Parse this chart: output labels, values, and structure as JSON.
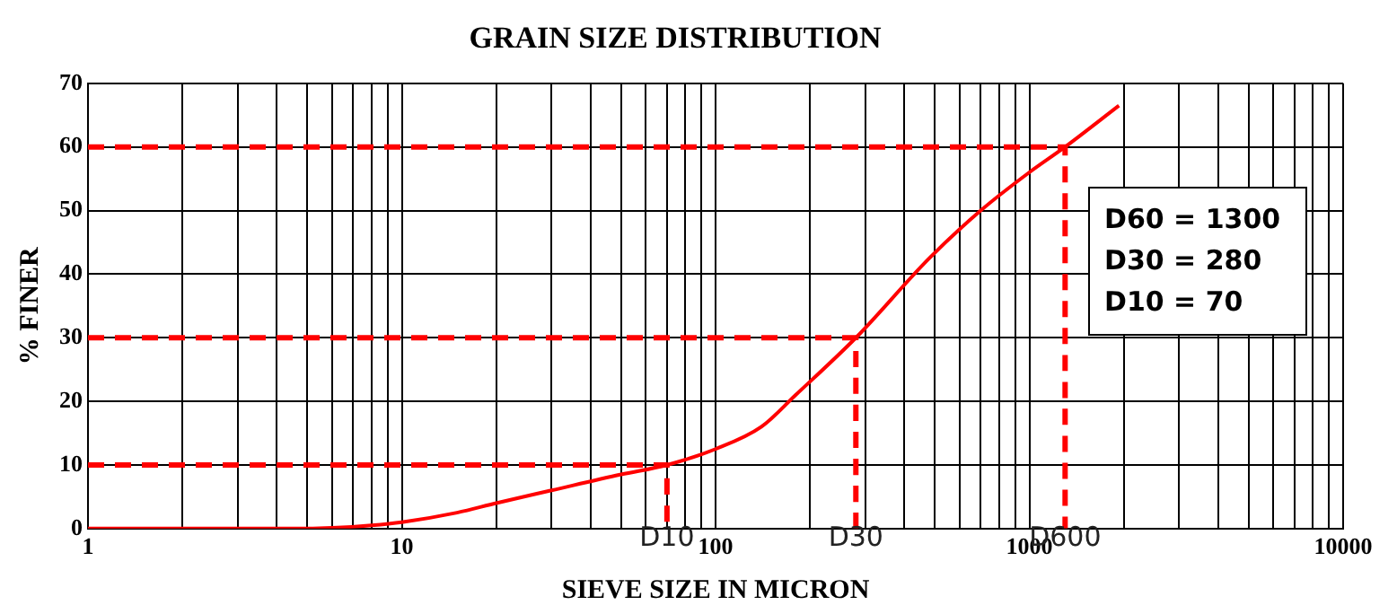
{
  "chart_data": {
    "type": "line",
    "title": "GRAIN SIZE DISTRIBUTION",
    "xlabel": "SIEVE SIZE IN MICRON",
    "ylabel": "% FINER",
    "log": "x",
    "xlim": [
      1,
      10000
    ],
    "ylim": [
      0,
      70
    ],
    "xticks": [
      1,
      {
        "value": 2,
        "label": null
      },
      {
        "value": 3,
        "label": null
      },
      {
        "value": 4,
        "label": null
      },
      {
        "value": 5,
        "label": null
      },
      {
        "value": 6,
        "label": null
      },
      {
        "value": 7,
        "label": null
      },
      {
        "value": 8,
        "label": null
      },
      {
        "value": 9,
        "label": null
      },
      10,
      {
        "value": 20,
        "label": null
      },
      {
        "value": 30,
        "label": null
      },
      {
        "value": 40,
        "label": null
      },
      {
        "value": 50,
        "label": null
      },
      {
        "value": 60,
        "label": null
      },
      {
        "value": 70,
        "label": null
      },
      {
        "value": 80,
        "label": null
      },
      {
        "value": 90,
        "label": null
      },
      100,
      {
        "value": 200,
        "label": null
      },
      {
        "value": 300,
        "label": null
      },
      {
        "value": 400,
        "label": null
      },
      {
        "value": 500,
        "label": null
      },
      {
        "value": 600,
        "label": null
      },
      {
        "value": 700,
        "label": null
      },
      {
        "value": 800,
        "label": null
      },
      {
        "value": 900,
        "label": null
      },
      1000,
      {
        "value": 2000,
        "label": null
      },
      {
        "value": 3000,
        "label": null
      },
      {
        "value": 4000,
        "label": null
      },
      {
        "value": 5000,
        "label": null
      },
      {
        "value": 6000,
        "label": null
      },
      {
        "value": 7000,
        "label": null
      },
      {
        "value": 8000,
        "label": null
      },
      {
        "value": 9000,
        "label": null
      },
      10000
    ],
    "yticks": [
      0,
      10,
      20,
      30,
      40,
      50,
      60,
      70
    ],
    "grid": true,
    "legend": false,
    "marker": "none",
    "series": [
      {
        "color": "#ff0000",
        "line_style": "solid",
        "x": [
          1,
          3,
          5,
          6,
          8,
          10,
          15,
          20,
          30,
          50,
          70,
          100,
          140,
          180,
          280,
          480,
          700,
          1000,
          1300,
          1930
        ],
        "values": [
          0,
          0,
          0,
          0.1,
          0.5,
          1,
          2.5,
          4,
          6,
          8.5,
          10,
          12.5,
          16,
          21,
          30,
          42.5,
          50,
          56,
          60,
          66.5
        ]
      },
      {
        "color": "#ff0000",
        "line_style": "dashed",
        "x": [
          1,
          70,
          70
        ],
        "values": [
          10,
          10,
          0
        ]
      },
      {
        "color": "#ff0000",
        "line_style": "dashed",
        "x": [
          1,
          280,
          280
        ],
        "values": [
          30,
          30,
          0
        ]
      },
      {
        "color": "#ff0000",
        "line_style": "dashed",
        "x": [
          1,
          1300,
          1300
        ],
        "values": [
          60,
          60,
          0
        ]
      }
    ],
    "annotations": [
      {
        "text": "D10",
        "x": 70,
        "y": 0
      },
      {
        "text": "D30",
        "x": 280,
        "y": 0
      },
      {
        "text": "D600",
        "x": 1300,
        "y": 0
      },
      "D60 = 1300",
      "D30 = 280",
      "D10 = 70"
    ]
  }
}
